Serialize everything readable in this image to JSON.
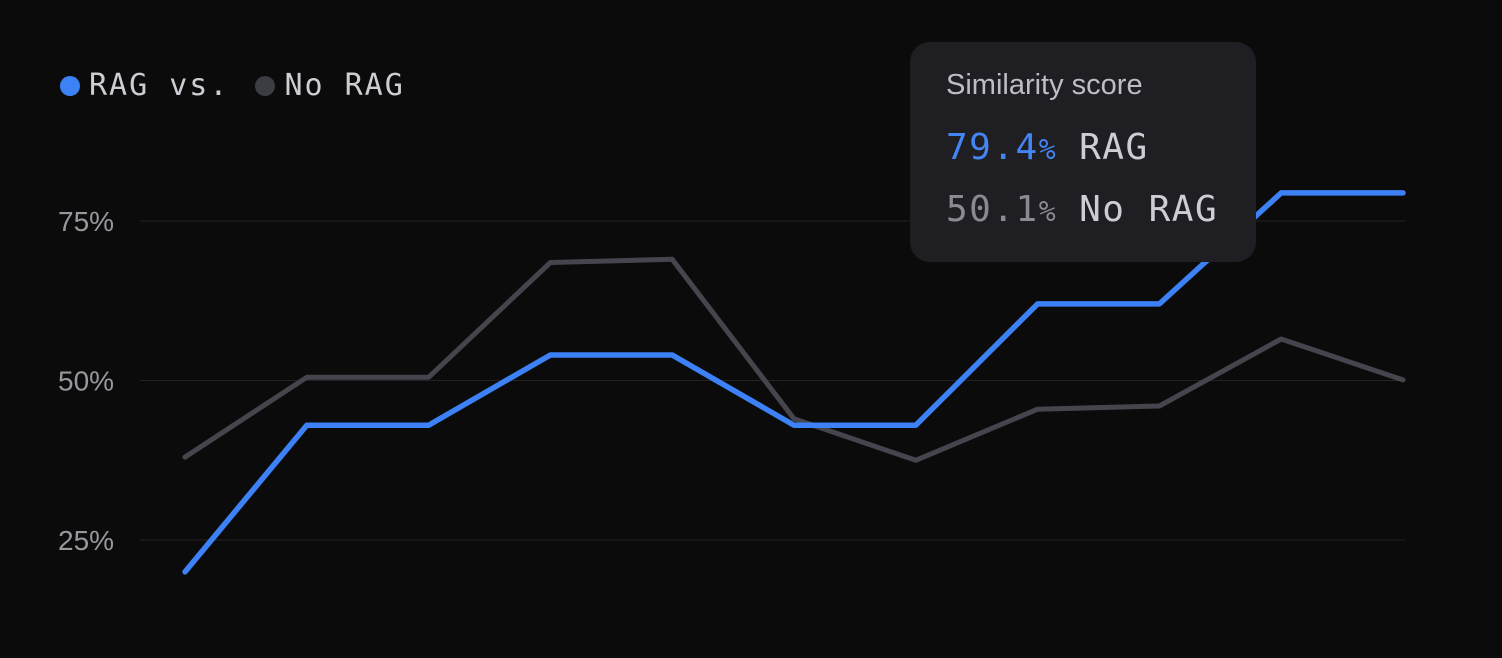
{
  "page": {
    "background": "#0c0b0b"
  },
  "legend": {
    "items": [
      {
        "label": "RAG vs.",
        "dot_color": "#3b82f6"
      },
      {
        "label": "No RAG",
        "dot_color": "#3c3c43"
      }
    ]
  },
  "tooltip": {
    "title": "Similarity score",
    "rows": [
      {
        "value": "79.4",
        "unit": "%",
        "label": "RAG",
        "value_color": "#4485f4"
      },
      {
        "value": "50.1",
        "unit": "%",
        "label": "No RAG",
        "value_color": "#8a8a91"
      }
    ]
  },
  "colors": {
    "background": "#0c0b0b",
    "rag_line": "#3c82f6",
    "no_rag_line": "#45454d",
    "gridline": "#222226",
    "axis_label": "#97979d",
    "legend_text": "#cdced3",
    "tooltip_background": "#1f1f23",
    "tooltip_title": "#bdbec3",
    "tooltip_label": "#cdced3"
  },
  "chart_data": {
    "type": "line",
    "title": "RAG vs. No RAG",
    "ylabel": "Similarity score",
    "x": [
      1,
      2,
      3,
      4,
      5,
      6,
      7,
      8,
      9,
      10,
      11
    ],
    "x_tick_labels_visible": false,
    "series": [
      {
        "name": "RAG",
        "color": "#3c82f6",
        "values": [
          20,
          43,
          43,
          54,
          54,
          43,
          43,
          62,
          62,
          79.4,
          79.4
        ]
      },
      {
        "name": "No RAG",
        "color": "#45454d",
        "values": [
          38,
          50.5,
          50.5,
          68.5,
          69,
          44,
          37.5,
          45.5,
          46,
          56.5,
          50.1
        ]
      }
    ],
    "y_ticks": [
      {
        "value": 75,
        "label": "75%"
      },
      {
        "value": 50,
        "label": "50%"
      },
      {
        "value": 25,
        "label": "25%"
      }
    ],
    "ylim": [
      0,
      100
    ],
    "grid": "horizontal",
    "legend_position": "top-left",
    "tooltip_values_point": 11
  }
}
